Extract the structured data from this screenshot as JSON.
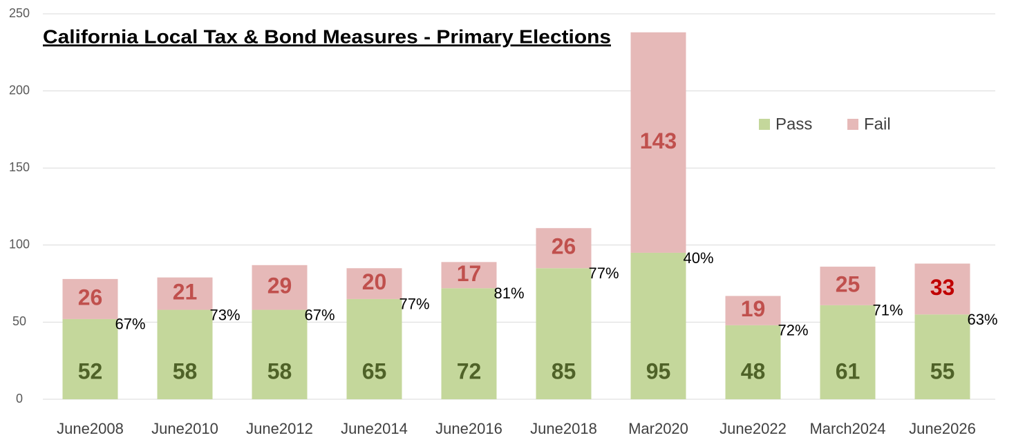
{
  "chart_data": {
    "type": "stacked_bar",
    "title": "California Local Tax & Bond Measures - Primary Elections",
    "categories": [
      "June2008",
      "June2010",
      "June2012",
      "June2014",
      "June2016",
      "June2018",
      "Mar2020",
      "June2022",
      "March2024",
      "June2026"
    ],
    "series": [
      {
        "name": "Pass",
        "color": "#c4d79b",
        "label_color": "#4f6228",
        "values": [
          52,
          58,
          58,
          65,
          72,
          85,
          95,
          48,
          61,
          55
        ]
      },
      {
        "name": "Fail",
        "color": "#e6b9b8",
        "label_colors": [
          "#c0504d",
          "#c0504d",
          "#c0504d",
          "#c0504d",
          "#c0504d",
          "#c0504d",
          "#c0504d",
          "#c0504d",
          "#c0504d",
          "#c00000"
        ],
        "values": [
          26,
          21,
          29,
          20,
          17,
          26,
          143,
          19,
          25,
          33
        ]
      }
    ],
    "annotations": [
      "67%",
      "73%",
      "67%",
      "77%",
      "81%",
      "77%",
      "40%",
      "72%",
      "71%",
      "63%"
    ],
    "ylim": [
      0,
      250
    ],
    "yticks": [
      0,
      50,
      100,
      150,
      200,
      250
    ],
    "grid": true,
    "legend": "top-right"
  }
}
